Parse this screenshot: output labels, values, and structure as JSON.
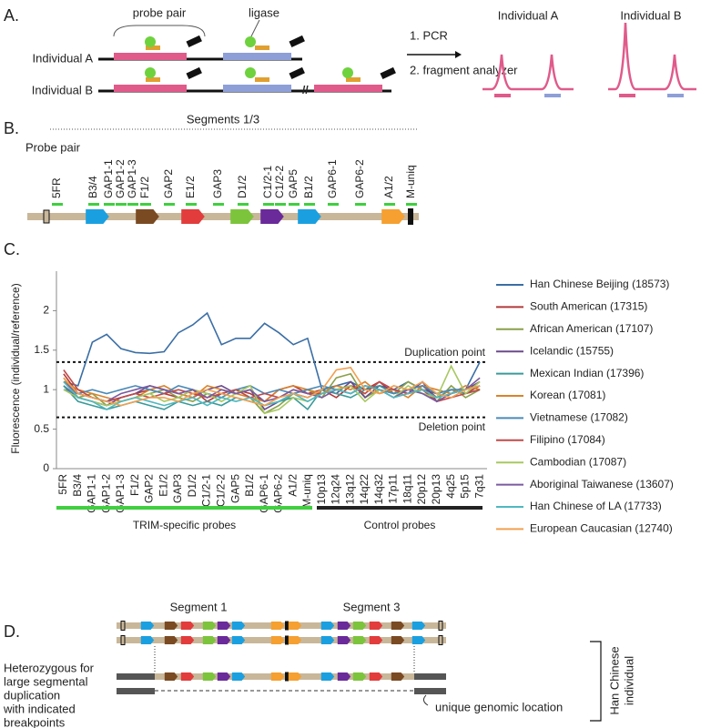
{
  "panel_a": {
    "label": "A.",
    "probe_pair": "probe pair",
    "ligase": "ligase",
    "individual_a": "Individual A",
    "individual_b": "Individual B",
    "step1": "1. PCR",
    "step2": "2. fragment analyzer",
    "result_a": "Individual A",
    "result_b": "Individual B"
  },
  "panel_b": {
    "label": "B.",
    "segments": "Segments 1/3",
    "probe_pair": "Probe pair",
    "probes": [
      "5FR",
      "B3/4",
      "GAP1-1",
      "GAP1-2",
      "GAP1-3",
      "F1/2",
      "GAP2",
      "E1/2",
      "GAP3",
      "D1/2",
      "C1/2-1",
      "C1/2-2",
      "GAP5",
      "B1/2",
      "GAP6-1",
      "GAP6-2",
      "A1/2",
      "M-uniq"
    ]
  },
  "chart_data": {
    "type": "line",
    "panel_label": "C.",
    "y_label": "Fluorescence (individual/reference)",
    "categories": [
      "5FR",
      "B3/4",
      "GAP1-1",
      "GAP1-2",
      "GAP1-3",
      "F1/2",
      "GAP2",
      "E1/2",
      "GAP3",
      "D1/2",
      "C1/2-1",
      "C1/2-2",
      "GAP5",
      "B1/2",
      "GAP6-1",
      "GAP6-2",
      "A1/2",
      "M-uniq",
      "10p13",
      "12q24",
      "13q12",
      "14q22",
      "14q32",
      "17p11",
      "18q11",
      "20p12",
      "20p13",
      "4q25",
      "5p15",
      "7q31"
    ],
    "ylim": [
      0,
      2.5
    ],
    "yticks": [
      0,
      0.5,
      1,
      1.5,
      2
    ],
    "reference_lines": [
      {
        "value": 1.35,
        "label": "Duplication point"
      },
      {
        "value": 0.65,
        "label": "Deletion point"
      }
    ],
    "groups": [
      {
        "label": "TRIM-specific probes",
        "color": "#3fcf3f"
      },
      {
        "label": "Control probes",
        "color": "#222222"
      }
    ],
    "series": [
      {
        "name": "Han Chinese Beijing (18573)",
        "color": "#3a6ea5",
        "values": [
          1.1,
          1.05,
          1.6,
          1.7,
          1.52,
          1.47,
          1.46,
          1.48,
          1.72,
          1.82,
          1.97,
          1.57,
          1.65,
          1.65,
          1.84,
          1.72,
          1.57,
          1.65,
          1.0,
          1.05,
          1.1,
          1.0,
          1.05,
          1.0,
          1.1,
          1.0,
          0.95,
          1.0,
          1.0,
          1.35
        ]
      },
      {
        "name": "South American (17315)",
        "color": "#b03a3a",
        "values": [
          1.2,
          0.95,
          0.9,
          0.85,
          0.9,
          0.95,
          1.0,
          0.95,
          0.9,
          1.0,
          0.85,
          0.95,
          1.0,
          0.95,
          0.85,
          1.0,
          1.05,
          0.95,
          1.0,
          0.9,
          1.05,
          1.0,
          1.1,
          0.95,
          1.0,
          1.05,
          0.9,
          1.0,
          0.95,
          1.05
        ]
      },
      {
        "name": "African American (17107)",
        "color": "#8aa04a",
        "values": [
          1.15,
          0.9,
          0.95,
          0.8,
          0.85,
          0.9,
          0.95,
          1.0,
          0.9,
          0.85,
          0.95,
          0.9,
          1.0,
          0.9,
          0.7,
          0.8,
          0.95,
          1.0,
          0.9,
          1.15,
          1.2,
          0.9,
          1.0,
          0.95,
          1.1,
          1.0,
          0.85,
          1.05,
          0.9,
          1.0
        ]
      },
      {
        "name": "Icelandic (15755)",
        "color": "#6a4a8c",
        "values": [
          1.05,
          0.9,
          0.85,
          0.8,
          0.9,
          0.95,
          1.05,
          1.0,
          0.95,
          0.9,
          1.0,
          1.05,
          0.95,
          1.0,
          0.75,
          0.85,
          0.95,
          0.9,
          1.0,
          0.95,
          1.1,
          0.9,
          1.05,
          1.0,
          0.95,
          1.1,
          0.85,
          0.95,
          1.0,
          1.1
        ]
      },
      {
        "name": "Mexican Indian (17396)",
        "color": "#3a9a9a",
        "values": [
          1.05,
          0.85,
          0.8,
          0.75,
          0.8,
          0.85,
          0.8,
          0.75,
          0.85,
          0.8,
          0.85,
          0.8,
          0.9,
          0.85,
          0.8,
          0.85,
          0.9,
          0.75,
          1.0,
          0.95,
          0.9,
          1.0,
          1.05,
          0.95,
          1.0,
          0.95,
          0.9,
          1.0,
          0.95,
          1.0
        ]
      },
      {
        "name": "Korean (17081)",
        "color": "#d9822b",
        "values": [
          1.1,
          1.0,
          0.95,
          0.9,
          0.85,
          0.9,
          1.0,
          1.05,
          0.95,
          0.9,
          1.05,
          1.0,
          0.95,
          0.9,
          0.85,
          1.0,
          1.05,
          1.0,
          0.95,
          1.05,
          1.0,
          1.1,
          0.95,
          1.0,
          0.9,
          1.05,
          1.0,
          0.95,
          1.05,
          1.0
        ]
      },
      {
        "name": "Vietnamese (17082)",
        "color": "#4a8ab8",
        "values": [
          1.0,
          0.95,
          1.0,
          0.95,
          1.0,
          1.05,
          1.0,
          0.95,
          1.05,
          1.0,
          0.95,
          0.9,
          1.0,
          1.05,
          0.95,
          1.0,
          0.95,
          1.0,
          1.05,
          1.0,
          0.95,
          1.05,
          1.0,
          0.95,
          1.0,
          1.05,
          0.95,
          1.0,
          1.0,
          1.05
        ]
      },
      {
        "name": "Filipino (17084)",
        "color": "#c04a4a",
        "values": [
          1.25,
          1.0,
          0.9,
          0.85,
          0.9,
          0.95,
          0.9,
          0.95,
          1.0,
          0.95,
          0.9,
          0.95,
          1.0,
          0.9,
          0.95,
          0.9,
          1.0,
          0.95,
          0.95,
          1.0,
          1.05,
          0.95,
          1.1,
          1.0,
          0.95,
          1.0,
          0.85,
          0.9,
          0.95,
          1.0
        ]
      },
      {
        "name": "Cambodian (17087)",
        "color": "#a8c860",
        "values": [
          1.0,
          0.9,
          0.85,
          0.8,
          0.85,
          0.9,
          0.95,
          0.85,
          0.9,
          1.0,
          0.95,
          0.85,
          0.95,
          1.05,
          0.7,
          0.75,
          0.9,
          0.85,
          0.95,
          1.0,
          1.05,
          0.85,
          1.0,
          0.9,
          1.05,
          0.95,
          0.9,
          1.3,
          0.95,
          1.1
        ]
      },
      {
        "name": "Aboriginal Taiwanese (13607)",
        "color": "#7a5aa0",
        "values": [
          1.1,
          0.95,
          0.9,
          0.85,
          0.95,
          1.0,
          1.05,
          1.0,
          0.95,
          1.0,
          0.9,
          1.0,
          0.95,
          1.0,
          0.85,
          0.9,
          1.0,
          0.95,
          0.9,
          1.0,
          0.95,
          1.05,
          1.0,
          0.9,
          1.0,
          0.95,
          0.85,
          0.95,
          1.0,
          1.15
        ]
      },
      {
        "name": "Han Chinese of LA (17733)",
        "color": "#50b8c0",
        "values": [
          1.1,
          0.9,
          0.85,
          0.75,
          0.85,
          0.9,
          0.85,
          0.8,
          0.85,
          0.9,
          0.8,
          0.9,
          0.85,
          0.9,
          0.8,
          0.85,
          0.95,
          0.85,
          0.95,
          1.0,
          0.95,
          1.05,
          1.0,
          0.9,
          0.95,
          1.0,
          0.9,
          0.95,
          1.0,
          1.05
        ]
      },
      {
        "name": "European Caucasian (12740)",
        "color": "#f0a050",
        "values": [
          1.15,
          0.95,
          0.9,
          0.85,
          0.8,
          0.85,
          0.9,
          0.9,
          0.85,
          0.95,
          1.0,
          0.95,
          0.9,
          0.85,
          0.8,
          0.9,
          0.95,
          0.9,
          1.0,
          1.25,
          1.28,
          1.0,
          0.95,
          1.05,
          1.0,
          1.1,
          0.95,
          0.9,
          1.0,
          1.05
        ]
      }
    ]
  },
  "panel_d": {
    "label": "D.",
    "segment_1": "Segment 1",
    "segment_3": "Segment 3",
    "description": [
      "Heterozygous for",
      "large segmental",
      "duplication",
      "with indicated",
      "breakpoints"
    ],
    "unique": "unique genomic location",
    "individual": [
      "Han Chinese",
      "individual"
    ]
  }
}
